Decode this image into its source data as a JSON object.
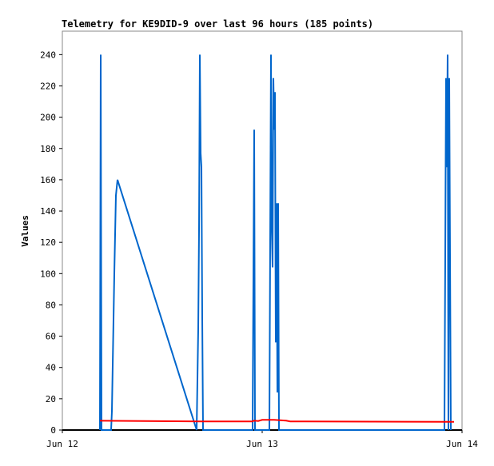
{
  "chart_data": {
    "type": "line",
    "title": "Telemetry for KE9DID-9 over last 96 hours (185 points)",
    "y_label": "Values",
    "xlim": [
      0,
      2
    ],
    "xticks": [
      {
        "value": 0,
        "label": "Jun 12"
      },
      {
        "value": 1,
        "label": "Jun 13"
      },
      {
        "value": 2,
        "label": "Jun 14"
      }
    ],
    "ylim": [
      0,
      255
    ],
    "yticks": [
      0,
      20,
      40,
      60,
      80,
      100,
      120,
      140,
      160,
      180,
      200,
      220,
      240
    ],
    "grid": false,
    "series": [
      {
        "color": "#0066cc",
        "x": [
          0.188,
          0.192,
          0.196,
          0.244,
          0.248,
          0.26,
          0.268,
          0.276,
          0.672,
          0.68,
          0.684,
          0.688,
          0.692,
          0.696,
          0.7,
          0.704,
          0.952,
          0.956,
          0.96,
          0.964,
          1.036,
          1.04,
          1.044,
          1.048,
          1.052,
          1.056,
          1.06,
          1.064,
          1.068,
          1.072,
          1.076,
          1.08,
          1.084,
          1.912,
          1.916,
          1.92,
          1.924,
          1.928,
          1.932,
          1.936,
          1.94,
          1.944
        ],
        "values": [
          0,
          240,
          0,
          0,
          12,
          100,
          150,
          160,
          0,
          65,
          128,
          240,
          177,
          168,
          72,
          0,
          0,
          97,
          192,
          0,
          0,
          120,
          240,
          128,
          104,
          225,
          192,
          216,
          56,
          145,
          24,
          145,
          0,
          0,
          112,
          225,
          168,
          240,
          0,
          225,
          112,
          0
        ]
      },
      {
        "color": "#ff0000",
        "x": [
          0.188,
          0.7,
          0.95,
          0.96,
          0.98,
          1.0,
          1.06,
          1.12,
          1.14,
          1.96
        ],
        "values": [
          6,
          5.5,
          5.5,
          6,
          5.8,
          6.5,
          6.5,
          6,
          5.5,
          5.2
        ]
      }
    ]
  }
}
